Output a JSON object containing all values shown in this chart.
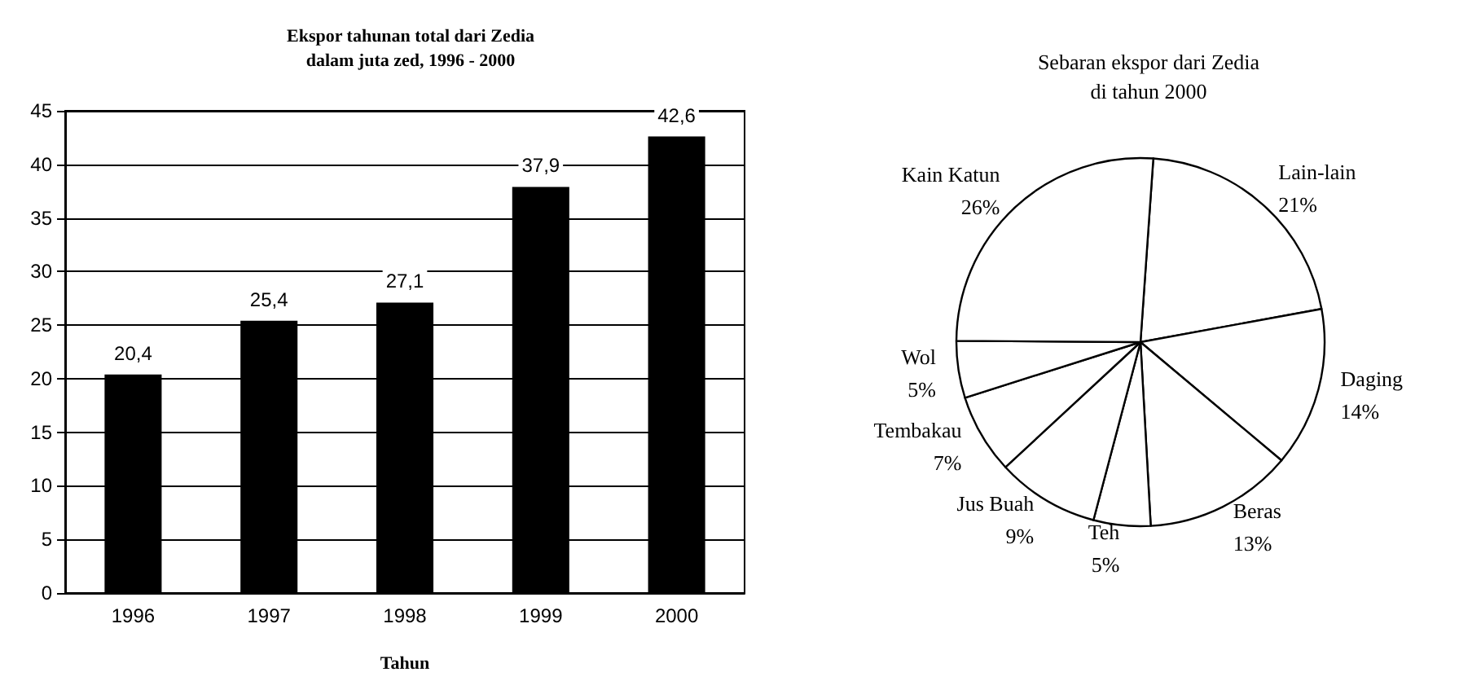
{
  "chart_data": [
    {
      "type": "bar",
      "title": "Ekspor tahunan total dari Zedia\ndalam juta zed, 1996 - 2000",
      "xlabel": "Tahun",
      "categories": [
        "1996",
        "1997",
        "1998",
        "1999",
        "2000"
      ],
      "values": [
        20.4,
        25.4,
        27.1,
        37.9,
        42.6
      ],
      "value_labels": [
        "20,4",
        "25,4",
        "27,1",
        "37,9",
        "42,6"
      ],
      "color": "#000000",
      "ylim": [
        0,
        45
      ],
      "yticks": [
        0,
        5,
        10,
        15,
        20,
        25,
        30,
        35,
        40,
        45
      ],
      "grid": "y"
    },
    {
      "type": "pie",
      "title": "Sebaran ekspor dari Zedia\ndi tahun 2000",
      "categories": [
        "Lain-lain",
        "Daging",
        "Beras",
        "Teh",
        "Jus Buah",
        "Tembakau",
        "Wol",
        "Kain Katun"
      ],
      "values": [
        21,
        14,
        13,
        5,
        9,
        7,
        5,
        26
      ],
      "value_labels": [
        "21%",
        "14%",
        "13%",
        "5%",
        "9%",
        "7%",
        "5%",
        "26%"
      ],
      "colors": [
        "#ffffff",
        "#ffffff",
        "#ffffff",
        "#ffffff",
        "#ffffff",
        "#ffffff",
        "#ffffff",
        "#ffffff"
      ]
    }
  ]
}
